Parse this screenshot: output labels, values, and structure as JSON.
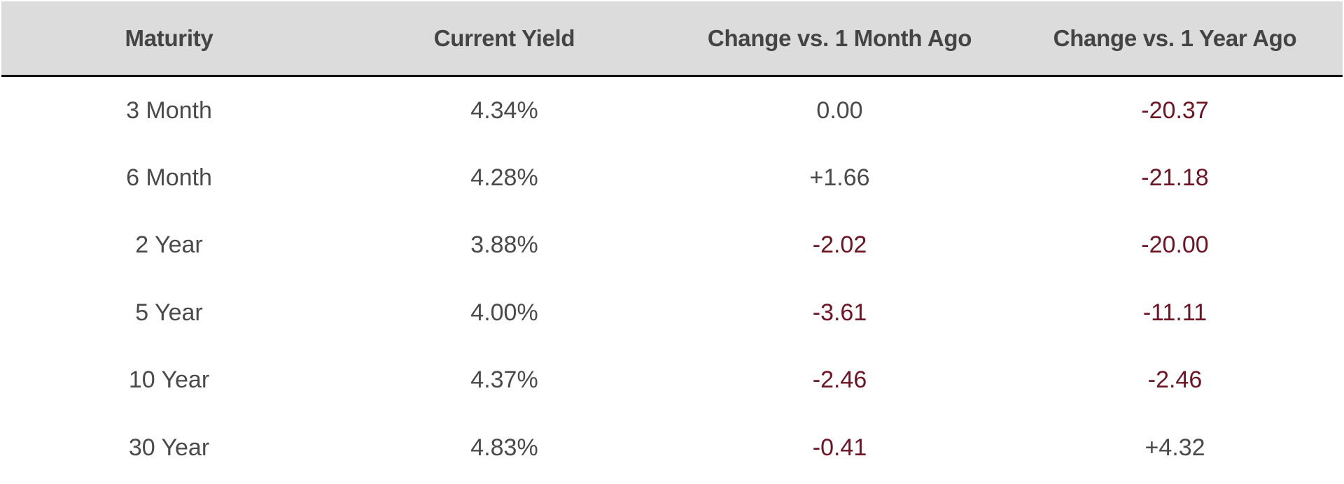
{
  "table": {
    "headers": [
      "Maturity",
      "Current Yield",
      "Change vs. 1 Month Ago",
      "Change vs. 1 Year Ago"
    ],
    "rows": [
      [
        "3 Month",
        "4.34%",
        "0.00",
        "-20.37"
      ],
      [
        "6 Month",
        "4.28%",
        "+1.66",
        "-21.18"
      ],
      [
        "2 Year",
        "3.88%",
        "-2.02",
        "-20.00"
      ],
      [
        "5 Year",
        "4.00%",
        "-3.61",
        "-11.11"
      ],
      [
        "10 Year",
        "4.37%",
        "-2.46",
        "-2.46"
      ],
      [
        "30 Year",
        "4.83%",
        "-0.41",
        "+4.32"
      ]
    ]
  },
  "colors": {
    "header_background": "#dcdcdc",
    "text": "#4a4a4a",
    "negative": "#6e1423"
  }
}
